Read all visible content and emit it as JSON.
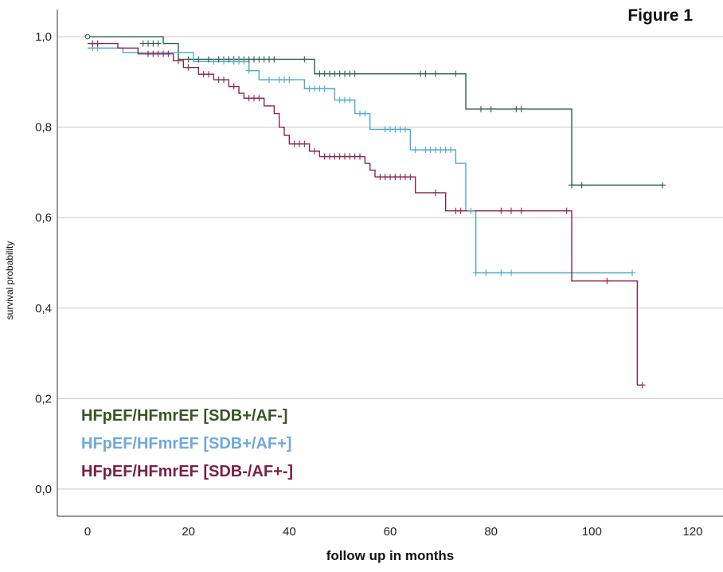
{
  "figure_label": "Figure 1",
  "chart_data": {
    "type": "line",
    "subtype": "kaplan-meier step",
    "xlabel": "follow up in months",
    "ylabel": "survival probability",
    "xlim": [
      -6,
      126
    ],
    "ylim": [
      -0.06,
      1.06
    ],
    "xticks": [
      0,
      20,
      40,
      60,
      80,
      100,
      120
    ],
    "xtick_labels": [
      "0",
      "20",
      "40",
      "60",
      "80",
      "100",
      "120"
    ],
    "yticks": [
      0.0,
      0.2,
      0.4,
      0.6,
      0.8,
      1.0
    ],
    "ytick_labels": [
      "0,0",
      "0,2",
      "0,4",
      "0,6",
      "0,8",
      "1,0"
    ],
    "grid": "horizontal",
    "legend_position": "bottom-left",
    "series": [
      {
        "name": "HFpEF/HFmrEF [SDB+/AF-]",
        "color": "#2e5e52",
        "legend_color": "#375623",
        "steps": [
          [
            0,
            1.0
          ],
          [
            15,
            0.985
          ],
          [
            18,
            0.95
          ],
          [
            45,
            0.918
          ],
          [
            75,
            0.84
          ],
          [
            96,
            0.672
          ],
          [
            114,
            0.672
          ]
        ],
        "censored": [
          [
            11,
            0.985
          ],
          [
            12,
            0.985
          ],
          [
            13,
            0.985
          ],
          [
            14,
            0.985
          ],
          [
            20,
            0.95
          ],
          [
            22,
            0.95
          ],
          [
            24,
            0.95
          ],
          [
            26,
            0.95
          ],
          [
            27,
            0.95
          ],
          [
            28,
            0.95
          ],
          [
            29,
            0.95
          ],
          [
            30,
            0.95
          ],
          [
            31,
            0.95
          ],
          [
            32,
            0.95
          ],
          [
            33,
            0.95
          ],
          [
            34,
            0.95
          ],
          [
            35,
            0.95
          ],
          [
            36,
            0.95
          ],
          [
            37,
            0.95
          ],
          [
            43,
            0.95
          ],
          [
            46,
            0.918
          ],
          [
            47,
            0.918
          ],
          [
            48,
            0.918
          ],
          [
            49,
            0.918
          ],
          [
            50,
            0.918
          ],
          [
            51,
            0.918
          ],
          [
            52,
            0.918
          ],
          [
            53,
            0.918
          ],
          [
            66,
            0.918
          ],
          [
            67,
            0.918
          ],
          [
            69,
            0.918
          ],
          [
            73,
            0.918
          ],
          [
            78,
            0.84
          ],
          [
            80,
            0.84
          ],
          [
            85,
            0.84
          ],
          [
            86,
            0.84
          ],
          [
            96,
            0.672
          ],
          [
            98,
            0.672
          ],
          [
            114,
            0.672
          ]
        ]
      },
      {
        "name": "HFpEF/HFmrEF [SDB+/AF+]",
        "color": "#4aa8cf",
        "legend_color": "#6fa8dc",
        "steps": [
          [
            0,
            0.975
          ],
          [
            7,
            0.965
          ],
          [
            21,
            0.945
          ],
          [
            32,
            0.925
          ],
          [
            34,
            0.905
          ],
          [
            43,
            0.885
          ],
          [
            49,
            0.86
          ],
          [
            53,
            0.83
          ],
          [
            56,
            0.795
          ],
          [
            64,
            0.75
          ],
          [
            73,
            0.72
          ],
          [
            75,
            0.615
          ],
          [
            77,
            0.478
          ],
          [
            108,
            0.478
          ]
        ],
        "censored": [
          [
            1,
            0.975
          ],
          [
            2,
            0.975
          ],
          [
            25,
            0.945
          ],
          [
            27,
            0.945
          ],
          [
            29,
            0.945
          ],
          [
            30,
            0.945
          ],
          [
            31,
            0.945
          ],
          [
            32,
            0.925
          ],
          [
            36,
            0.905
          ],
          [
            38,
            0.905
          ],
          [
            39,
            0.905
          ],
          [
            40,
            0.905
          ],
          [
            44,
            0.885
          ],
          [
            45,
            0.885
          ],
          [
            46,
            0.885
          ],
          [
            47,
            0.885
          ],
          [
            50,
            0.86
          ],
          [
            51,
            0.86
          ],
          [
            52,
            0.86
          ],
          [
            54,
            0.83
          ],
          [
            55,
            0.83
          ],
          [
            59,
            0.795
          ],
          [
            60,
            0.795
          ],
          [
            61,
            0.795
          ],
          [
            62,
            0.795
          ],
          [
            63,
            0.795
          ],
          [
            65,
            0.75
          ],
          [
            67,
            0.75
          ],
          [
            68,
            0.75
          ],
          [
            69,
            0.75
          ],
          [
            70,
            0.75
          ],
          [
            71,
            0.75
          ],
          [
            72,
            0.75
          ],
          [
            76,
            0.615
          ],
          [
            77,
            0.478
          ],
          [
            79,
            0.478
          ],
          [
            82,
            0.478
          ],
          [
            84,
            0.478
          ],
          [
            108,
            0.478
          ]
        ]
      },
      {
        "name": "HFpEF/HFmrEF [SDB-/AF+-]",
        "color": "#8b2252",
        "legend_color": "#7a1f45",
        "steps": [
          [
            0,
            0.985
          ],
          [
            6,
            0.975
          ],
          [
            10,
            0.962
          ],
          [
            17,
            0.947
          ],
          [
            19,
            0.932
          ],
          [
            22,
            0.917
          ],
          [
            25,
            0.905
          ],
          [
            28,
            0.89
          ],
          [
            30,
            0.875
          ],
          [
            31,
            0.864
          ],
          [
            35,
            0.847
          ],
          [
            37,
            0.83
          ],
          [
            38,
            0.8
          ],
          [
            39,
            0.782
          ],
          [
            40,
            0.763
          ],
          [
            44,
            0.747
          ],
          [
            46,
            0.735
          ],
          [
            55,
            0.72
          ],
          [
            56,
            0.705
          ],
          [
            57,
            0.69
          ],
          [
            65,
            0.655
          ],
          [
            71,
            0.615
          ],
          [
            96,
            0.46
          ],
          [
            109,
            0.23
          ],
          [
            110,
            0.23
          ]
        ],
        "censored": [
          [
            1,
            0.985
          ],
          [
            2,
            0.985
          ],
          [
            12,
            0.962
          ],
          [
            13,
            0.962
          ],
          [
            14,
            0.962
          ],
          [
            15,
            0.962
          ],
          [
            16,
            0.962
          ],
          [
            18,
            0.947
          ],
          [
            20,
            0.932
          ],
          [
            23,
            0.917
          ],
          [
            24,
            0.917
          ],
          [
            26,
            0.905
          ],
          [
            27,
            0.905
          ],
          [
            29,
            0.89
          ],
          [
            32,
            0.864
          ],
          [
            33,
            0.864
          ],
          [
            34,
            0.864
          ],
          [
            41,
            0.763
          ],
          [
            42,
            0.763
          ],
          [
            43,
            0.763
          ],
          [
            45,
            0.747
          ],
          [
            47,
            0.735
          ],
          [
            48,
            0.735
          ],
          [
            49,
            0.735
          ],
          [
            50,
            0.735
          ],
          [
            51,
            0.735
          ],
          [
            52,
            0.735
          ],
          [
            53,
            0.735
          ],
          [
            54,
            0.735
          ],
          [
            58,
            0.69
          ],
          [
            59,
            0.69
          ],
          [
            60,
            0.69
          ],
          [
            61,
            0.69
          ],
          [
            62,
            0.69
          ],
          [
            63,
            0.69
          ],
          [
            64,
            0.69
          ],
          [
            69,
            0.655
          ],
          [
            73,
            0.615
          ],
          [
            74,
            0.615
          ],
          [
            82,
            0.615
          ],
          [
            84,
            0.615
          ],
          [
            86,
            0.615
          ],
          [
            95,
            0.615
          ],
          [
            103,
            0.46
          ],
          [
            110,
            0.23
          ]
        ]
      }
    ]
  }
}
